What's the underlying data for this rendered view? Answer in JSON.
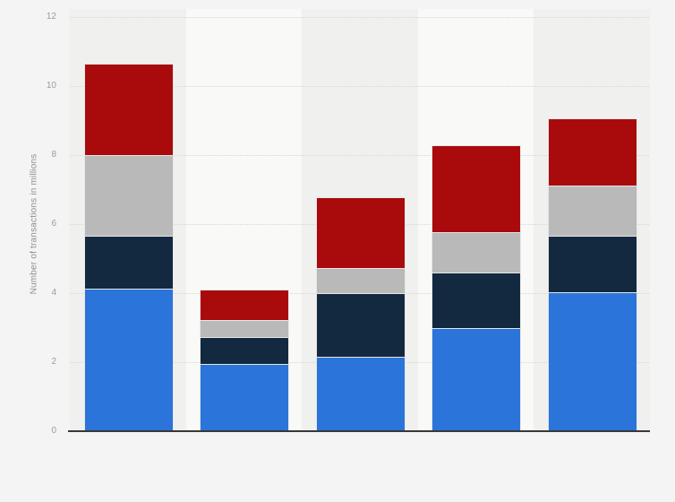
{
  "chart": {
    "background": "#f4f4f4",
    "band_light": "#f9f9f8",
    "band_dark": "#f0f0ef",
    "gridline_color": "#d6d6d6",
    "axis_line_color": "#38383a",
    "tick_label_color": "#9b9b9b",
    "axis_title_color": "#8f8f8f"
  },
  "chart_data": {
    "type": "bar",
    "stacked": true,
    "title": "",
    "xlabel": "",
    "ylabel": "Number of transactions in millions",
    "ylim": [
      0,
      12
    ],
    "yticks": [
      0,
      2,
      4,
      6,
      8,
      10,
      12
    ],
    "categories": [
      "",
      "",
      "",
      "",
      ""
    ],
    "x_tick_labels_visible": false,
    "legend": "none",
    "grid": "horizontal-dotted",
    "series": [
      {
        "name": "blue",
        "color": "#2b74d9",
        "values": [
          4.12,
          1.95,
          2.15,
          3.0,
          4.03
        ]
      },
      {
        "name": "dark-navy",
        "color": "#132940",
        "values": [
          1.54,
          0.78,
          1.85,
          1.61,
          1.64
        ]
      },
      {
        "name": "silver-gray",
        "color": "#b9b9b9",
        "values": [
          2.34,
          0.49,
          0.72,
          1.16,
          1.44
        ]
      },
      {
        "name": "dark-red",
        "color": "#a90b0d",
        "values": [
          2.65,
          0.89,
          2.05,
          2.52,
          1.95
        ]
      }
    ],
    "stack_totals": [
      10.65,
      4.11,
      6.77,
      8.29,
      9.06
    ]
  }
}
